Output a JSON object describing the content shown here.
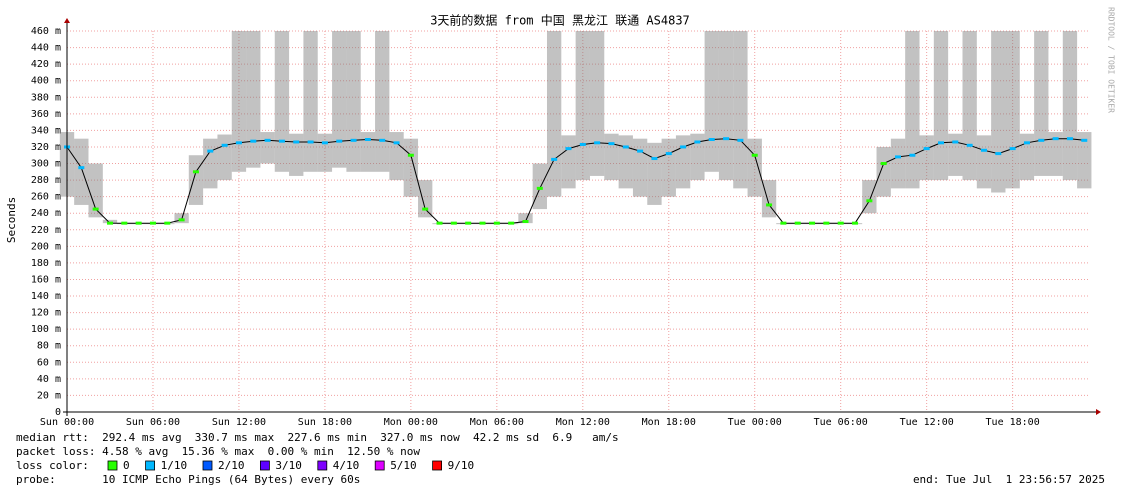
{
  "chart_data": {
    "type": "smokeping",
    "title": "3天前的数据 from 中国 黑龙江 联通 AS4837",
    "y_label": "Seconds",
    "watermark": "RRDTOOL / TOBI OETIKER",
    "xlim": [
      0,
      71.4
    ],
    "xticks": [
      {
        "value": 0,
        "label": "Sun 00:00"
      },
      {
        "value": 6,
        "label": "Sun 06:00"
      },
      {
        "value": 12,
        "label": "Sun 12:00"
      },
      {
        "value": 18,
        "label": "Sun 18:00"
      },
      {
        "value": 24,
        "label": "Mon 00:00"
      },
      {
        "value": 30,
        "label": "Mon 06:00"
      },
      {
        "value": 36,
        "label": "Mon 12:00"
      },
      {
        "value": 42,
        "label": "Mon 18:00"
      },
      {
        "value": 48,
        "label": "Tue 00:00"
      },
      {
        "value": 54,
        "label": "Tue 06:00"
      },
      {
        "value": 60,
        "label": "Tue 12:00"
      },
      {
        "value": 66,
        "label": "Tue 18:00"
      }
    ],
    "ylim": [
      0,
      0.46
    ],
    "yticks": [
      0,
      {
        "value": 0.02,
        "label": "20 m"
      },
      {
        "value": 0.04,
        "label": "40 m"
      },
      {
        "value": 0.06,
        "label": "60 m"
      },
      {
        "value": 0.08,
        "label": "80 m"
      },
      {
        "value": 0.1,
        "label": "100 m"
      },
      {
        "value": 0.12,
        "label": "120 m"
      },
      {
        "value": 0.14,
        "label": "140 m"
      },
      {
        "value": 0.16,
        "label": "160 m"
      },
      {
        "value": 0.18,
        "label": "180 m"
      },
      {
        "value": 0.2,
        "label": "200 m"
      },
      {
        "value": 0.22,
        "label": "220 m"
      },
      {
        "value": 0.24,
        "label": "240 m"
      },
      {
        "value": 0.26,
        "label": "260 m"
      },
      {
        "value": 0.28,
        "label": "280 m"
      },
      {
        "value": 0.3,
        "label": "300 m"
      },
      {
        "value": 0.32,
        "label": "320 m"
      },
      {
        "value": 0.34,
        "label": "340 m"
      },
      {
        "value": 0.36,
        "label": "360 m"
      },
      {
        "value": 0.38,
        "label": "380 m"
      },
      {
        "value": 0.4,
        "label": "400 m"
      },
      {
        "value": 0.42,
        "label": "420 m"
      },
      {
        "value": 0.44,
        "label": "440 m"
      },
      {
        "value": 0.46,
        "label": "460 m"
      }
    ],
    "grid": true,
    "x": [
      0,
      1,
      2,
      3,
      4,
      5,
      6,
      7,
      8,
      9,
      10,
      11,
      12,
      13,
      14,
      15,
      16,
      17,
      18,
      19,
      20,
      21,
      22,
      23,
      24,
      25,
      26,
      27,
      28,
      29,
      30,
      31,
      32,
      33,
      34,
      35,
      36,
      37,
      38,
      39,
      40,
      41,
      42,
      43,
      44,
      45,
      46,
      47,
      48,
      49,
      50,
      51,
      52,
      53,
      54,
      55,
      56,
      57,
      58,
      59,
      60,
      61,
      62,
      63,
      64,
      65,
      66,
      67,
      68,
      69,
      70,
      71
    ],
    "series": [
      {
        "color": "#000000",
        "values": [
          0.32,
          0.295,
          0.245,
          0.228,
          0.228,
          0.228,
          0.228,
          0.228,
          0.232,
          0.29,
          0.315,
          0.322,
          0.325,
          0.327,
          0.328,
          0.327,
          0.326,
          0.326,
          0.325,
          0.327,
          0.328,
          0.329,
          0.328,
          0.325,
          0.31,
          0.245,
          0.228,
          0.228,
          0.228,
          0.228,
          0.228,
          0.228,
          0.23,
          0.27,
          0.305,
          0.318,
          0.323,
          0.325,
          0.324,
          0.32,
          0.315,
          0.306,
          0.312,
          0.32,
          0.326,
          0.329,
          0.33,
          0.328,
          0.31,
          0.25,
          0.228,
          0.228,
          0.228,
          0.228,
          0.228,
          0.228,
          0.255,
          0.3,
          0.308,
          0.31,
          0.318,
          0.325,
          0.326,
          0.322,
          0.316,
          0.312,
          0.318,
          0.325,
          0.328,
          0.33,
          0.33,
          0.328
        ],
        "loss": [
          1,
          1,
          0,
          0,
          0,
          0,
          0,
          0,
          0,
          0,
          1,
          1,
          1,
          1,
          1,
          1,
          1,
          1,
          1,
          1,
          1,
          1,
          1,
          1,
          0,
          0,
          0,
          0,
          0,
          0,
          0,
          0,
          0,
          0,
          1,
          1,
          1,
          1,
          1,
          1,
          1,
          1,
          1,
          1,
          1,
          1,
          1,
          1,
          0,
          0,
          0,
          0,
          0,
          0,
          0,
          0,
          0,
          0,
          1,
          1,
          1,
          1,
          1,
          1,
          1,
          1,
          1,
          1,
          1,
          1,
          1,
          1
        ]
      }
    ],
    "smoke": {
      "color": "#777777",
      "low": [
        0.26,
        0.25,
        0.235,
        0.228,
        0.228,
        0.228,
        0.228,
        0.228,
        0.228,
        0.25,
        0.27,
        0.28,
        0.29,
        0.295,
        0.3,
        0.29,
        0.285,
        0.29,
        0.29,
        0.295,
        0.29,
        0.29,
        0.29,
        0.28,
        0.26,
        0.235,
        0.228,
        0.228,
        0.228,
        0.228,
        0.228,
        0.228,
        0.228,
        0.245,
        0.26,
        0.27,
        0.28,
        0.285,
        0.28,
        0.27,
        0.26,
        0.25,
        0.26,
        0.27,
        0.28,
        0.29,
        0.28,
        0.27,
        0.26,
        0.235,
        0.228,
        0.228,
        0.228,
        0.228,
        0.228,
        0.228,
        0.24,
        0.26,
        0.27,
        0.27,
        0.28,
        0.28,
        0.285,
        0.28,
        0.27,
        0.265,
        0.27,
        0.28,
        0.285,
        0.285,
        0.28,
        0.27
      ],
      "high": [
        0.338,
        0.33,
        0.3,
        0.232,
        0.228,
        0.228,
        0.228,
        0.228,
        0.24,
        0.31,
        0.33,
        0.335,
        0.46,
        0.46,
        0.338,
        0.46,
        0.336,
        0.46,
        0.336,
        0.46,
        0.46,
        0.338,
        0.46,
        0.338,
        0.33,
        0.28,
        0.228,
        0.228,
        0.228,
        0.228,
        0.228,
        0.228,
        0.24,
        0.3,
        0.46,
        0.334,
        0.46,
        0.46,
        0.336,
        0.334,
        0.33,
        0.325,
        0.33,
        0.334,
        0.336,
        0.46,
        0.46,
        0.46,
        0.33,
        0.28,
        0.228,
        0.228,
        0.228,
        0.228,
        0.228,
        0.228,
        0.28,
        0.32,
        0.33,
        0.46,
        0.334,
        0.46,
        0.336,
        0.46,
        0.334,
        0.46,
        0.46,
        0.336,
        0.46,
        0.338,
        0.46,
        0.338
      ]
    },
    "loss_legend": {
      "label": "loss color:",
      "entries": [
        {
          "name": "0",
          "color": "#26ff00",
          "loss": 0
        },
        {
          "name": "1/10",
          "color": "#00b8ff",
          "loss": 1
        },
        {
          "name": "2/10",
          "color": "#0059ff",
          "loss": 2
        },
        {
          "name": "3/10",
          "color": "#5e00ff",
          "loss": 3
        },
        {
          "name": "4/10",
          "color": "#7e00ff",
          "loss": 4
        },
        {
          "name": "5/10",
          "color": "#dd00ff",
          "loss": 5
        },
        {
          "name": "9/10",
          "color": "#ff0000",
          "loss": 9
        }
      ]
    },
    "stats": [
      "median rtt:  292.4 ms avg  330.7 ms max  227.6 ms min  327.0 ms now  42.2 ms sd  6.9   am/s",
      "packet loss: 4.58 % avg  15.36 % max  0.00 % min  12.50 % now"
    ],
    "probe": "probe:       10 ICMP Echo Pings (64 Bytes) every 60s",
    "end": "end: Tue Jul  1 23:56:57 2025"
  }
}
